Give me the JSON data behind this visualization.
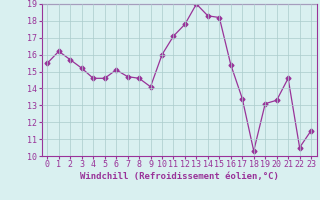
{
  "x": [
    0,
    1,
    2,
    3,
    4,
    5,
    6,
    7,
    8,
    9,
    10,
    11,
    12,
    13,
    14,
    15,
    16,
    17,
    18,
    19,
    20,
    21,
    22,
    23
  ],
  "y": [
    15.5,
    16.2,
    15.7,
    15.2,
    14.6,
    14.6,
    15.1,
    14.7,
    14.6,
    14.1,
    16.0,
    17.1,
    17.8,
    19.0,
    18.3,
    18.2,
    15.4,
    13.4,
    10.3,
    13.1,
    13.3,
    14.6,
    10.5,
    11.5
  ],
  "line_color": "#993399",
  "marker": "D",
  "marker_size": 2.5,
  "bg_color": "#d9f0f0",
  "grid_color": "#aacccc",
  "xlabel": "Windchill (Refroidissement éolien,°C)",
  "ylim": [
    10,
    19
  ],
  "xlim": [
    -0.5,
    23.5
  ],
  "yticks": [
    10,
    11,
    12,
    13,
    14,
    15,
    16,
    17,
    18,
    19
  ],
  "xticks": [
    0,
    1,
    2,
    3,
    4,
    5,
    6,
    7,
    8,
    9,
    10,
    11,
    12,
    13,
    14,
    15,
    16,
    17,
    18,
    19,
    20,
    21,
    22,
    23
  ],
  "tick_color": "#993399",
  "label_color": "#993399",
  "spine_color": "#993399",
  "tick_fontsize": 6,
  "xlabel_fontsize": 6.5
}
